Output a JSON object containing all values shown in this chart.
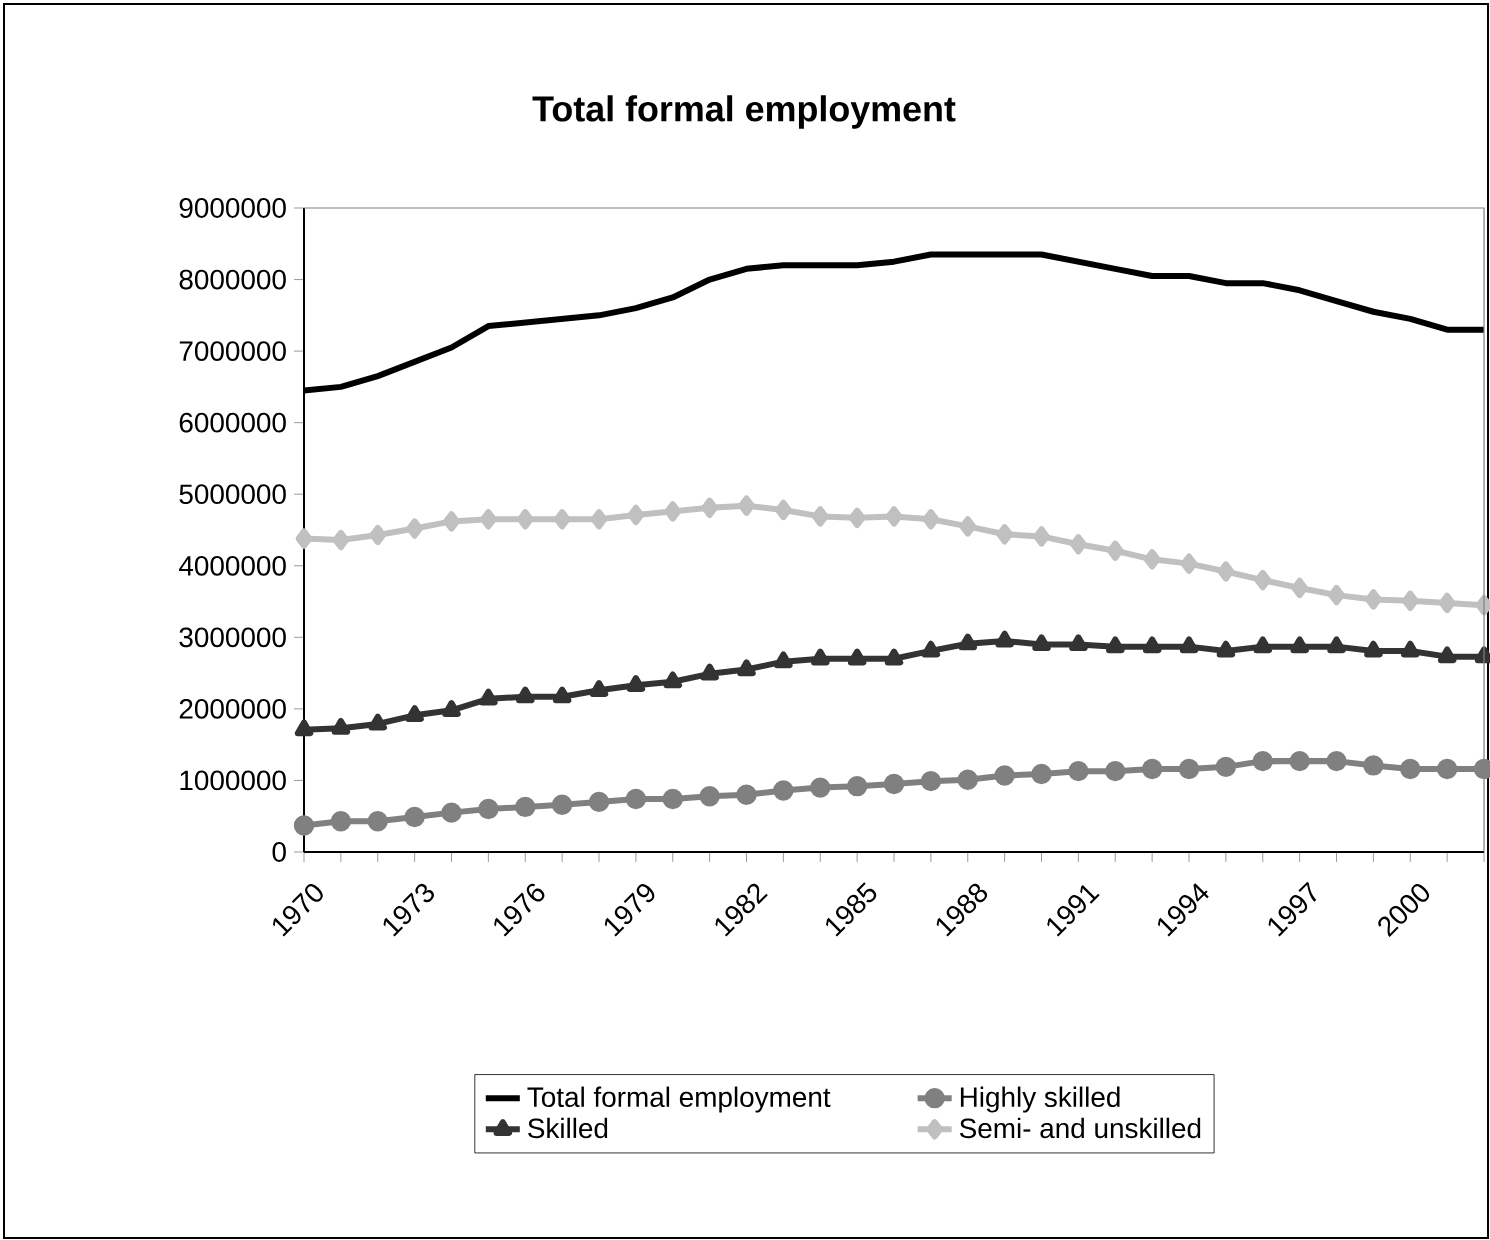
{
  "chart_data": {
    "type": "line",
    "title": "Total formal employment",
    "categories": [
      "1970",
      null,
      null,
      "1973",
      null,
      null,
      "1976",
      null,
      null,
      "1979",
      null,
      null,
      "1982",
      null,
      null,
      "1985",
      null,
      null,
      "1988",
      null,
      null,
      "1991",
      null,
      null,
      "1994",
      null,
      null,
      "1997",
      null,
      null,
      "2000",
      null,
      null
    ],
    "series": [
      {
        "name": "Total formal employment",
        "color": "#000000",
        "marker": "none",
        "values": [
          6450000,
          6500000,
          6650000,
          6850000,
          7050000,
          7350000,
          7400000,
          7450000,
          7500000,
          7600000,
          7750000,
          8000000,
          8150000,
          8200000,
          8200000,
          8200000,
          8250000,
          8350000,
          8350000,
          8350000,
          8350000,
          8250000,
          8150000,
          8050000,
          8050000,
          7950000,
          7950000,
          7850000,
          7700000,
          7550000,
          7450000,
          7300000,
          7300000
        ]
      },
      {
        "name": "Highly skilled",
        "color": "#808080",
        "marker": "circle",
        "values": [
          370000,
          430000,
          430000,
          490000,
          550000,
          600000,
          630000,
          660000,
          700000,
          740000,
          740000,
          780000,
          800000,
          860000,
          900000,
          920000,
          950000,
          990000,
          1010000,
          1070000,
          1090000,
          1130000,
          1130000,
          1160000,
          1160000,
          1190000,
          1270000,
          1270000,
          1270000,
          1210000,
          1160000,
          1160000,
          1160000
        ]
      },
      {
        "name": "Skilled",
        "color": "#333333",
        "marker": "triangle",
        "values": [
          1710000,
          1730000,
          1790000,
          1910000,
          1980000,
          2140000,
          2170000,
          2170000,
          2260000,
          2330000,
          2380000,
          2490000,
          2550000,
          2660000,
          2700000,
          2700000,
          2700000,
          2810000,
          2910000,
          2950000,
          2900000,
          2900000,
          2870000,
          2870000,
          2870000,
          2810000,
          2870000,
          2870000,
          2870000,
          2810000,
          2810000,
          2730000,
          2730000
        ]
      },
      {
        "name": "Semi- and unskilled",
        "color": "#c0c0c0",
        "marker": "diamond",
        "values": [
          4380000,
          4360000,
          4430000,
          4520000,
          4620000,
          4650000,
          4650000,
          4650000,
          4650000,
          4710000,
          4760000,
          4810000,
          4840000,
          4780000,
          4690000,
          4670000,
          4690000,
          4650000,
          4550000,
          4440000,
          4410000,
          4300000,
          4210000,
          4090000,
          4030000,
          3920000,
          3800000,
          3690000,
          3590000,
          3530000,
          3510000,
          3480000,
          3450000
        ]
      }
    ],
    "ylim": [
      0,
      9000000
    ],
    "yticks": [
      0,
      1000000,
      2000000,
      3000000,
      4000000,
      5000000,
      6000000,
      7000000,
      8000000,
      9000000
    ],
    "grid": false,
    "legend": "bottom",
    "line_style": "solid"
  }
}
